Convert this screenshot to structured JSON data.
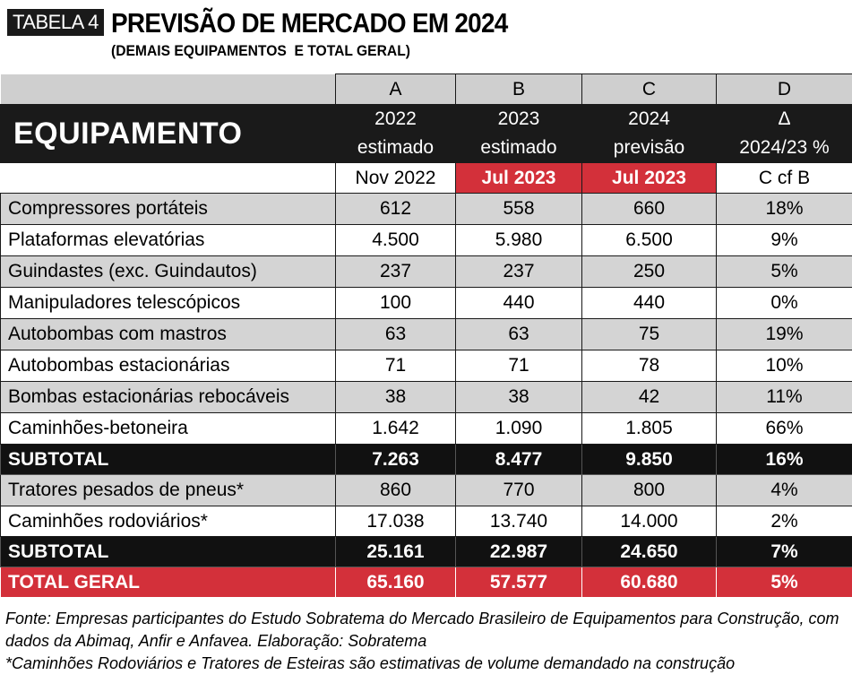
{
  "header": {
    "badge": "TABELA 4",
    "title": "PREVISÃO DE MERCADO EM 2024",
    "subtitle": "(DEMAIS EQUIPAMENTOS  E TOTAL GERAL)"
  },
  "table": {
    "col_letters": [
      "A",
      "B",
      "C",
      "D"
    ],
    "equip_label": "EQUIPAMENTO",
    "col_years": [
      "2022",
      "2023",
      "2024",
      "Δ"
    ],
    "col_types": [
      "estimado",
      "estimado",
      "previsão",
      "2024/23 %"
    ],
    "col_dates": [
      "Nov 2022",
      "Jul 2023",
      "Jul 2023",
      "C cf B"
    ],
    "rows": [
      {
        "label": "Compressores portáteis",
        "a": "612",
        "b": "558",
        "c": "660",
        "d": "18%"
      },
      {
        "label": "Plataformas elevatórias",
        "a": "4.500",
        "b": "5.980",
        "c": "6.500",
        "d": "9%"
      },
      {
        "label": "Guindastes (exc. Guindautos)",
        "a": "237",
        "b": "237",
        "c": "250",
        "d": "5%"
      },
      {
        "label": "Manipuladores telescópicos",
        "a": "100",
        "b": "440",
        "c": "440",
        "d": "0%"
      },
      {
        "label": "Autobombas com mastros",
        "a": "63",
        "b": "63",
        "c": "75",
        "d": "19%"
      },
      {
        "label": "Autobombas estacionárias",
        "a": "71",
        "b": "71",
        "c": "78",
        "d": "10%"
      },
      {
        "label": "Bombas estacionárias rebocáveis",
        "a": "38",
        "b": "38",
        "c": "42",
        "d": "11%"
      },
      {
        "label": "Caminhões-betoneira",
        "a": "1.642",
        "b": "1.090",
        "c": "1.805",
        "d": "66%"
      },
      {
        "label": "SUBTOTAL",
        "a": "7.263",
        "b": "8.477",
        "c": "9.850",
        "d": "16%"
      },
      {
        "label": "Tratores pesados de pneus*",
        "a": "860",
        "b": "770",
        "c": "800",
        "d": "4%"
      },
      {
        "label": "Caminhões rodoviários*",
        "a": "17.038",
        "b": "13.740",
        "c": "14.000",
        "d": "2%"
      },
      {
        "label": "SUBTOTAL",
        "a": "25.161",
        "b": "22.987",
        "c": "24.650",
        "d": "7%"
      },
      {
        "label": "TOTAL GERAL",
        "a": "65.160",
        "b": "57.577",
        "c": "60.680",
        "d": "5%"
      }
    ]
  },
  "footer": {
    "source_line1": "Fonte: Empresas participantes do Estudo Sobratema do Mercado Brasileiro de Equipamentos para Construção, com",
    "source_line2": "dados da Abimaq, Anfir e Anfavea. Elaboração: Sobratema",
    "note": "*Caminhões Rodoviários e Tratores de Esteiras são estimativas de volume demandado na construção"
  },
  "colors": {
    "dark": "#1a1a1a",
    "red": "#d3303a",
    "gray": "#d4d4d4"
  }
}
